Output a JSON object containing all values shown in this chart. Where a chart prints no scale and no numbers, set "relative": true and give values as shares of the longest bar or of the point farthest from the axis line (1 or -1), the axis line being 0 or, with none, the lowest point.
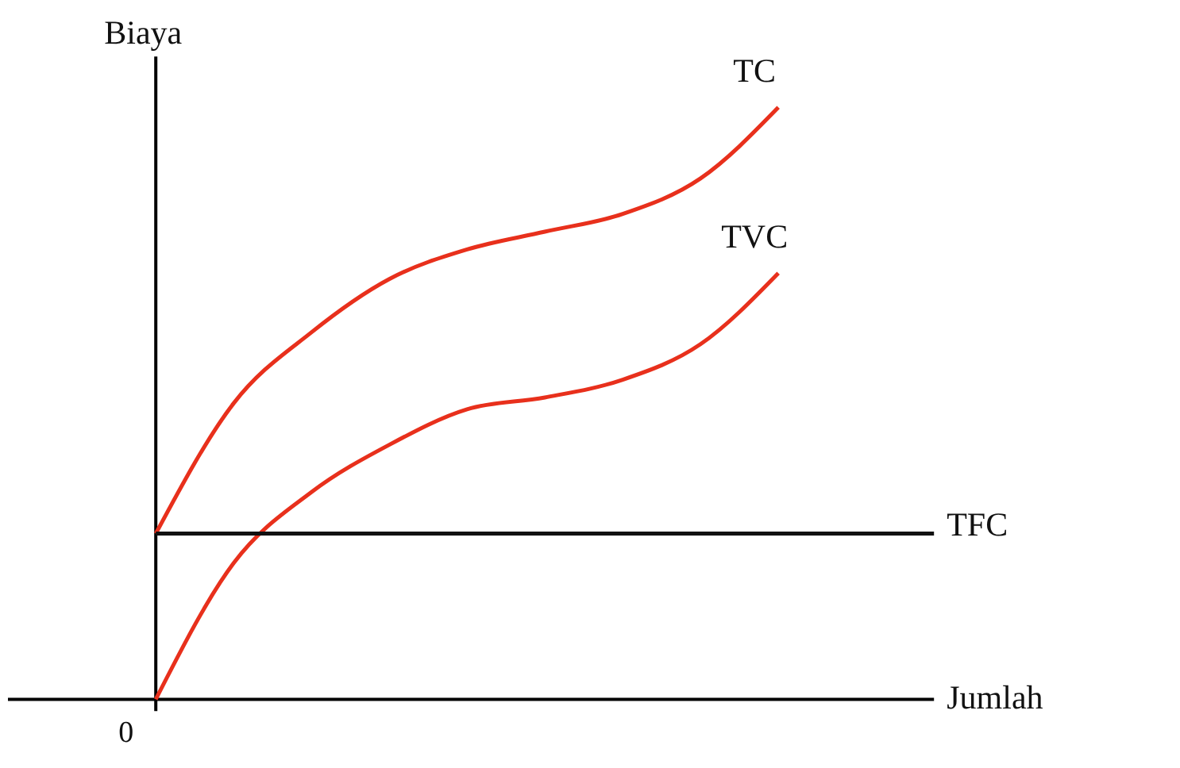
{
  "chart_data": {
    "type": "line",
    "relative": true,
    "xlabel": "Jumlah",
    "ylabel": "Biaya",
    "annotations": [
      "0"
    ],
    "categories": [
      null,
      null,
      null,
      null,
      null,
      null,
      null,
      null,
      null,
      null,
      null
    ],
    "series": [
      {
        "name": "TC",
        "color": "#e8301c",
        "values": [
          0.28,
          0.5,
          0.62,
          0.71,
          0.76,
          0.79,
          0.82,
          0.88,
          1,
          null,
          null
        ]
      },
      {
        "name": "TVC",
        "color": "#e8301c",
        "values": [
          0,
          0.23,
          0.35,
          0.43,
          0.49,
          0.51,
          0.54,
          0.6,
          0.72,
          null,
          null
        ]
      },
      {
        "name": "TFC",
        "color": "#111111",
        "values": [
          0.28,
          0.28,
          0.28,
          0.28,
          0.28,
          0.28,
          0.28,
          0.28,
          0.28,
          0.28,
          0.28
        ]
      }
    ]
  }
}
